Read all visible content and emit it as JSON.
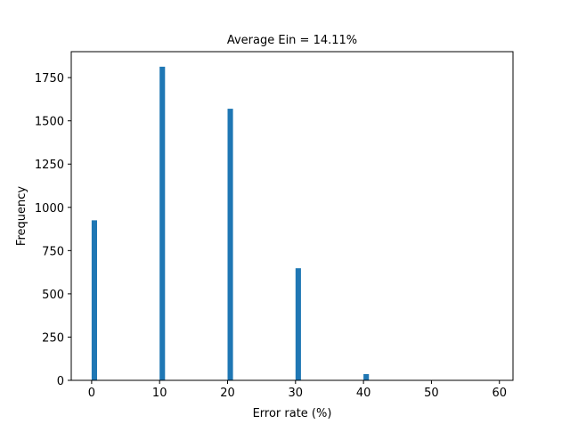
{
  "chart_data": {
    "type": "bar",
    "title": "Average Ein = 14.11%",
    "xlabel": "Error rate (%)",
    "ylabel": "Frequency",
    "xlim": [
      -3,
      62
    ],
    "ylim": [
      0,
      1900
    ],
    "xticks": [
      0,
      10,
      20,
      30,
      40,
      50,
      60
    ],
    "yticks": [
      0,
      250,
      500,
      750,
      1000,
      1250,
      1500,
      1750
    ],
    "bar_width": 0.8,
    "bars": [
      {
        "x": 0.4,
        "value": 925
      },
      {
        "x": 10.4,
        "value": 1813
      },
      {
        "x": 20.4,
        "value": 1570
      },
      {
        "x": 30.4,
        "value": 648
      },
      {
        "x": 40.4,
        "value": 36
      }
    ],
    "bar_color": "#1f77b4",
    "grid": false,
    "legend": "none"
  }
}
